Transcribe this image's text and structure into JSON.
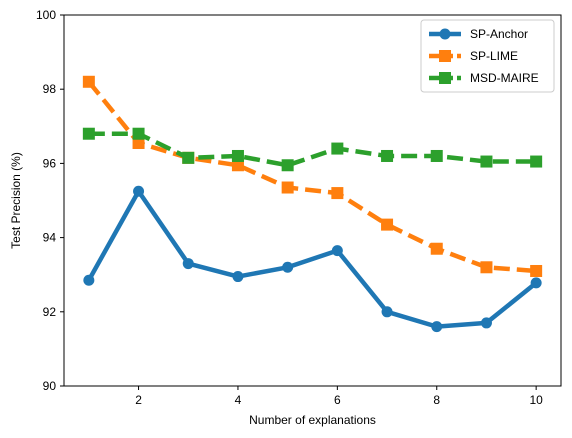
{
  "chart_data": {
    "type": "line",
    "xlabel": "Number of explanations",
    "ylabel": "Test Precision (%)",
    "xlim": [
      0.5,
      10.5
    ],
    "ylim": [
      90,
      100
    ],
    "x": [
      1,
      2,
      3,
      4,
      5,
      6,
      7,
      8,
      9,
      10
    ],
    "xticks": [
      2,
      4,
      6,
      8,
      10
    ],
    "yticks": [
      90,
      92,
      94,
      96,
      98,
      100
    ],
    "grid": false,
    "legend_position": "top-right",
    "series": [
      {
        "name": "SP-Anchor",
        "color": "#1f77b4",
        "line_style": "solid",
        "marker": "circle",
        "values": [
          92.85,
          95.25,
          93.3,
          92.95,
          93.2,
          93.65,
          92.0,
          91.6,
          91.7,
          92.78
        ]
      },
      {
        "name": "SP-LIME",
        "color": "#ff7f0e",
        "line_style": "dashed",
        "marker": "square",
        "values": [
          98.2,
          96.55,
          96.15,
          95.95,
          95.35,
          95.2,
          94.35,
          93.7,
          93.2,
          93.1
        ]
      },
      {
        "name": "MSD-MAIRE",
        "color": "#2ca02c",
        "line_style": "dashed",
        "marker": "square",
        "values": [
          96.8,
          96.8,
          96.15,
          96.2,
          95.95,
          96.4,
          96.2,
          96.2,
          96.05,
          96.05
        ]
      }
    ]
  }
}
